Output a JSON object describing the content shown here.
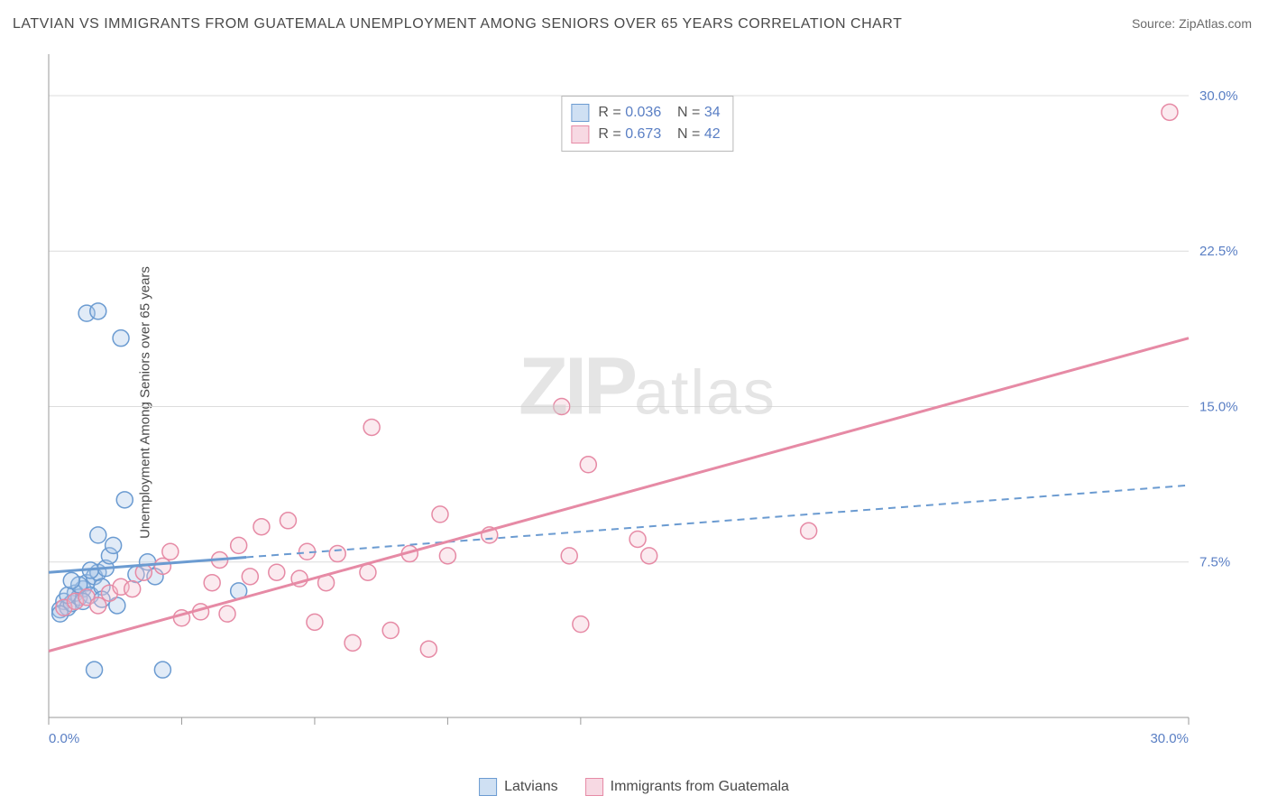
{
  "title": "LATVIAN VS IMMIGRANTS FROM GUATEMALA UNEMPLOYMENT AMONG SENIORS OVER 65 YEARS CORRELATION CHART",
  "source_label": "Source:",
  "source_value": "ZipAtlas.com",
  "ylabel": "Unemployment Among Seniors over 65 years",
  "watermark": {
    "bold": "ZIP",
    "rest": "atlas"
  },
  "chart": {
    "type": "scatter",
    "xlim": [
      0,
      30
    ],
    "ylim": [
      0,
      32
    ],
    "x_ticks": [
      0,
      3.5,
      7,
      10.5,
      14,
      30
    ],
    "x_tick_labels": {
      "0": "0.0%",
      "30": "30.0%"
    },
    "y_ticks": [
      7.5,
      15.0,
      22.5,
      30.0
    ],
    "y_tick_labels": [
      "7.5%",
      "15.0%",
      "22.5%",
      "30.0%"
    ],
    "grid_color": "#dcdcdc",
    "axis_color": "#9a9a9a",
    "background": "#ffffff",
    "tick_label_color": "#5a7fc4",
    "axis_label_color": "#4a4a4a",
    "title_color": "#4a4a4a",
    "title_fontsize": 16,
    "label_fontsize": 15,
    "tick_fontsize": 15,
    "marker_radius": 9,
    "marker_fill_opacity": 0.35,
    "marker_stroke_width": 1.5,
    "trend_line_width_solid": 3,
    "trend_line_width_dash": 2,
    "dash_pattern": "8,6",
    "series": [
      {
        "name": "Latvians",
        "color_stroke": "#6b9bd1",
        "color_fill": "#a9c6e8",
        "swatch_border": "#6b9bd1",
        "swatch_fill": "#cfe0f3",
        "R": "0.036",
        "N": "34",
        "trend": {
          "x1": 0,
          "y1": 7.0,
          "x2": 30,
          "y2": 11.2,
          "solid_until_x": 5.2
        },
        "points": [
          [
            0.3,
            5.2
          ],
          [
            0.4,
            5.6
          ],
          [
            0.5,
            5.3
          ],
          [
            0.6,
            5.5
          ],
          [
            0.7,
            6.0
          ],
          [
            0.8,
            5.8
          ],
          [
            0.9,
            6.2
          ],
          [
            1.0,
            6.5
          ],
          [
            1.1,
            5.9
          ],
          [
            1.2,
            6.8
          ],
          [
            1.3,
            7.0
          ],
          [
            1.4,
            6.3
          ],
          [
            1.5,
            7.2
          ],
          [
            1.6,
            7.8
          ],
          [
            1.7,
            8.3
          ],
          [
            1.8,
            5.4
          ],
          [
            1.2,
            2.3
          ],
          [
            3.0,
            2.3
          ],
          [
            2.0,
            10.5
          ],
          [
            1.3,
            8.8
          ],
          [
            1.0,
            19.5
          ],
          [
            1.3,
            19.6
          ],
          [
            1.9,
            18.3
          ],
          [
            0.3,
            5.0
          ],
          [
            0.5,
            5.9
          ],
          [
            0.8,
            6.4
          ],
          [
            1.1,
            7.1
          ],
          [
            1.4,
            5.7
          ],
          [
            0.6,
            6.6
          ],
          [
            0.9,
            5.6
          ],
          [
            2.3,
            6.9
          ],
          [
            2.6,
            7.5
          ],
          [
            2.8,
            6.8
          ],
          [
            5.0,
            6.1
          ]
        ]
      },
      {
        "name": "Immigrants from Guatemala",
        "color_stroke": "#e68aa5",
        "color_fill": "#f3c4d2",
        "swatch_border": "#e68aa5",
        "swatch_fill": "#f7d9e3",
        "R": "0.673",
        "N": "42",
        "trend": {
          "x1": 0,
          "y1": 3.2,
          "x2": 30,
          "y2": 18.3,
          "solid_until_x": 30
        },
        "points": [
          [
            0.4,
            5.3
          ],
          [
            0.7,
            5.6
          ],
          [
            1.0,
            5.8
          ],
          [
            1.3,
            5.4
          ],
          [
            1.6,
            6.0
          ],
          [
            1.9,
            6.3
          ],
          [
            2.2,
            6.2
          ],
          [
            3.0,
            7.3
          ],
          [
            3.5,
            4.8
          ],
          [
            4.0,
            5.1
          ],
          [
            4.3,
            6.5
          ],
          [
            4.7,
            5.0
          ],
          [
            5.3,
            6.8
          ],
          [
            5.6,
            9.2
          ],
          [
            6.0,
            7.0
          ],
          [
            6.3,
            9.5
          ],
          [
            6.6,
            6.7
          ],
          [
            7.0,
            4.6
          ],
          [
            7.3,
            6.5
          ],
          [
            7.6,
            7.9
          ],
          [
            8.0,
            3.6
          ],
          [
            8.5,
            14.0
          ],
          [
            8.4,
            7.0
          ],
          [
            9.0,
            4.2
          ],
          [
            9.5,
            7.9
          ],
          [
            10.0,
            3.3
          ],
          [
            10.3,
            9.8
          ],
          [
            10.5,
            7.8
          ],
          [
            11.6,
            8.8
          ],
          [
            13.5,
            15.0
          ],
          [
            13.7,
            7.8
          ],
          [
            14.0,
            4.5
          ],
          [
            14.2,
            12.2
          ],
          [
            15.5,
            8.6
          ],
          [
            15.8,
            7.8
          ],
          [
            20.0,
            9.0
          ],
          [
            29.5,
            29.2
          ],
          [
            2.5,
            7.0
          ],
          [
            3.2,
            8.0
          ],
          [
            5.0,
            8.3
          ],
          [
            4.5,
            7.6
          ],
          [
            6.8,
            8.0
          ]
        ]
      }
    ]
  },
  "legend_bottom": [
    {
      "label": "Latvians",
      "series": 0
    },
    {
      "label": "Immigrants from Guatemala",
      "series": 1
    }
  ]
}
